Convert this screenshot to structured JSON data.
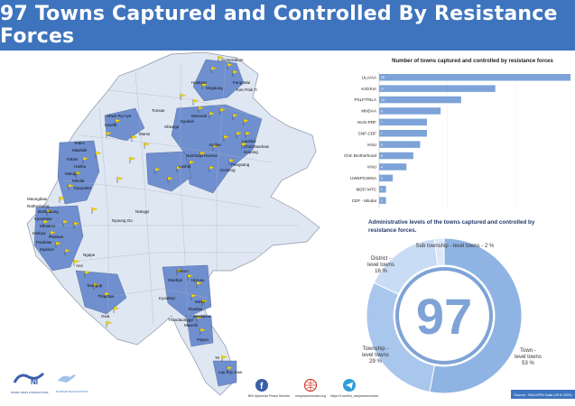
{
  "title": "97 Towns Captured and Controlled By Resistance Forces",
  "map": {
    "labels": [
      "Sumprabum",
      "Hpakant",
      "Mogaung",
      "Fang Wai",
      "Kan Paik Ti",
      "Shwe Pyi Aye",
      "Tonsae",
      "Kawlin",
      "Mansi",
      "Momauk",
      "Shwegu",
      "Kyukok",
      "Laukkai",
      "Chinshwehaw",
      "Hopang",
      "Pangsang",
      "Namhsan",
      "Kutkai",
      "Hsenwi",
      "Lashio",
      "Kunlong",
      "Mawlaik",
      "Paletwa",
      "Matupi",
      "Mindat",
      "Kanpetlet",
      "Falam",
      "Hakha",
      "Tedim",
      "Ngape",
      "Natogyi",
      "Kyauktaw",
      "Mrauk-U",
      "Minbya",
      "Pauktaw",
      "Myebon",
      "Rathedaung",
      "Buthidaung",
      "Maungdaw",
      "Ann",
      "Taungup",
      "Thandwe",
      "Gwa",
      "Nyaung Oo",
      "Pekon",
      "Moebye",
      "Hpruso",
      "Mese",
      "Shadaw",
      "Bawlakhe",
      "Mawchi",
      "Kyaukkyi",
      "Papun",
      "Thandaunggyi",
      "Ye",
      "Lay Kay Kaw"
    ]
  },
  "chart_data": [
    {
      "type": "bar",
      "title": "Number of towns captured and controlled by resistance forces",
      "categories": [
        "ULA/AA",
        "KIO/KIA",
        "PSLF/TNLA",
        "MNDAA",
        "NUG-PDF",
        "CNF-CDF",
        "KNU",
        "Chin Brotherhood",
        "KNU",
        "UWSP/UWSA",
        "MDF/ MTC",
        "CDF - Mindat"
      ],
      "values": [
        28,
        17,
        12,
        9,
        7,
        7,
        6,
        5,
        4,
        2,
        1,
        1
      ],
      "value_labels": [
        "28",
        "17",
        "12",
        "9",
        "7",
        "7",
        "6",
        "5",
        "4",
        "2",
        "1",
        "1"
      ],
      "xlim": [
        0,
        28
      ],
      "xticks": [
        "0",
        "10",
        "20"
      ],
      "color": "#7da3d8"
    },
    {
      "type": "pie",
      "title": "Administrative levels of the towns captured and controlled by resistance forces.",
      "center_label": "97",
      "labels": [
        "Town - level towns",
        "Township - level towns",
        "District - level towns",
        "Sub township - level towns"
      ],
      "display_labels": [
        "Town -\nlevel towns\n53 %",
        "Township -\nlevel towns\n29 %",
        "District -\nlevel towns\n16 %",
        "Sub township - level towns - 2 %"
      ],
      "values": [
        53,
        29,
        16,
        2
      ],
      "colors": [
        "#8fb4e3",
        "#a9c6ec",
        "#c9dcf5",
        "#dde8f8"
      ]
    }
  ],
  "footer": {
    "logo1": "BURMA NEWS INTERNATIONAL",
    "logo2": "MYANMAR PEACE MONITOR",
    "facebook": "BNI Myanmar Peace Monitor",
    "web": "mmpeacemonitor.org",
    "telegram": "https://t.me/bni_mmpeacemonitor",
    "source": "Source : BNI-MPM Data (29.6.2024)"
  },
  "colors": {
    "accent": "#3e74be",
    "map_base": "#dfe7f3",
    "map_highlight": "#6f8fcf",
    "flag": "#f2d60c"
  }
}
